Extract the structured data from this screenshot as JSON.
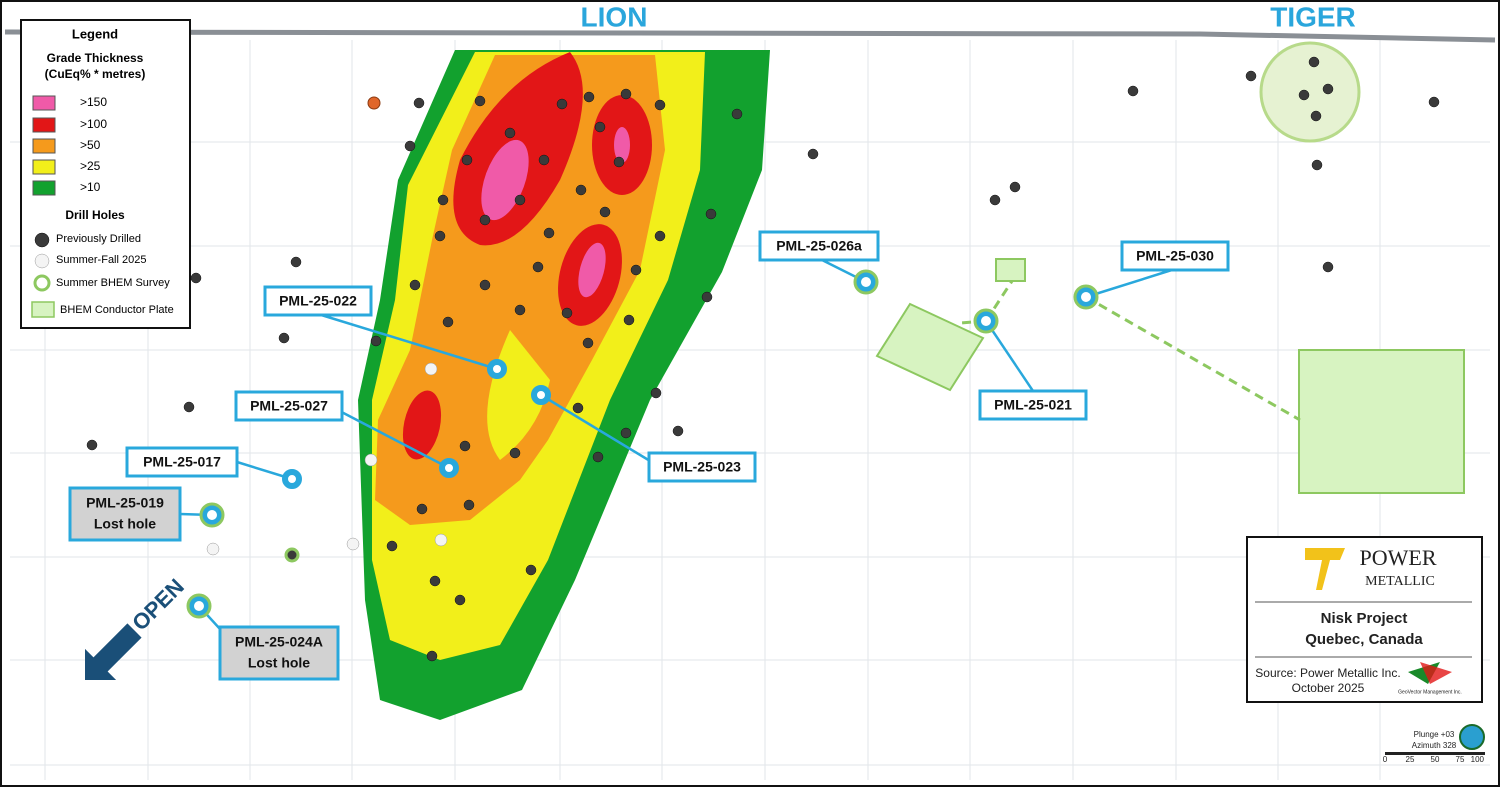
{
  "map": {
    "zones": [
      "LION",
      "TIGER"
    ],
    "legend": {
      "title": "Legend",
      "grade_title": "Grade Thickness",
      "grade_units": "(CuEq% * metres)",
      "grades": [
        ">150",
        ">100",
        ">50",
        ">25",
        ">10"
      ],
      "holes_title": "Drill Holes",
      "holes": [
        "Previously Drilled",
        "Summer-Fall 2025",
        "Summer BHEM Survey",
        "BHEM Conductor Plate"
      ]
    },
    "holes": [
      {
        "label": "PML-25-026a"
      },
      {
        "label": "PML-25-030"
      },
      {
        "label": "PML-25-022"
      },
      {
        "label": "PML-25-021"
      },
      {
        "label": "PML-25-027"
      },
      {
        "label": "PML-25-023"
      },
      {
        "label": "PML-25-017"
      },
      {
        "label": "PML-25-019",
        "note": "Lost hole"
      },
      {
        "label": "PML-25-024A",
        "note": "Lost hole"
      }
    ],
    "open": "OPEN",
    "logo": {
      "brand": [
        "POWER",
        "METALLIC"
      ],
      "project": "Nisk Project",
      "location": "Quebec, Canada",
      "source": "Source: Power Metallic Inc.",
      "date": "October 2025",
      "partner": "GeoVector Management Inc."
    },
    "scale": {
      "plunge": "Plunge +03",
      "azimuth": "Azimuth 328",
      "ticks": [
        "0",
        "25",
        "50",
        "75",
        "100"
      ]
    }
  }
}
